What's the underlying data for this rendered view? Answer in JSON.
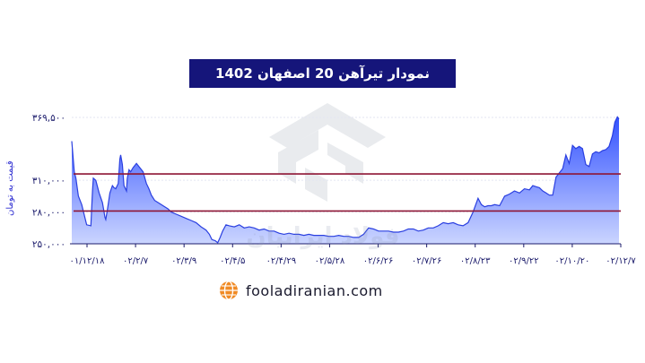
{
  "chart_data": {
    "type": "area",
    "title": "نمودار تیرآهن 20 اصفهان 1402",
    "ylabel": "قیمت به تومان",
    "xlabel": "",
    "ylim": [
      250000,
      372000
    ],
    "yticks": [
      "۳۶۹,۵۰۰",
      "۳۱۰,۰۰۰",
      "۲۸۰,۰۰۰",
      "۲۵۰,۰۰۰"
    ],
    "ytick_values": [
      369500,
      310000,
      280000,
      250000
    ],
    "xticks": [
      "۰۱/۱۲/۱۸",
      "۰۲/۲/۷",
      "۰۲/۳/۹",
      "۰۲/۴/۵",
      "۰۲/۴/۲۹",
      "۰۲/۵/۲۸",
      "۰۲/۶/۲۶",
      "۰۲/۷/۲۶",
      "۰۲/۸/۲۳",
      "۰۲/۹/۲۲",
      "۰۲/۱۰/۲۰",
      "۰۲/۱۲/۷"
    ],
    "reference_lines": [
      316000,
      281000
    ],
    "grid": false,
    "x": [
      0,
      0.3,
      0.5,
      0.8,
      1.2,
      1.8,
      2.3,
      2.5,
      2.6,
      2.9,
      3.3,
      3.7,
      4.0,
      4.1,
      4.3,
      4.6,
      4.9,
      5.1,
      5.3,
      5.6,
      5.8,
      5.9,
      6.1,
      6.3,
      6.6,
      6.7,
      6.9,
      7.1,
      7.4,
      7.8,
      8.2,
      8.6,
      9.0,
      9.3,
      9.6,
      10.0,
      10.6,
      11.0,
      11.6,
      12.0,
      12.6,
      13.2,
      13.8,
      14.4,
      15.0,
      15.6,
      16.2,
      16.6,
      16.9,
      17.3,
      17.6,
      17.9,
      18.2,
      18.6,
      19.0,
      19.6,
      20.2,
      20.8,
      21.4,
      22.0,
      22.6,
      23.2,
      23.8,
      24.4,
      25.0,
      25.6,
      26.2,
      26.8,
      27.4,
      28.0,
      28.6,
      29.2,
      29.8,
      30.4,
      31.0,
      31.6,
      32.2,
      32.8,
      33.4,
      34.0,
      34.6,
      35.2,
      35.8,
      36.4,
      37.0,
      37.6,
      38.2,
      38.8,
      39.4,
      40.0,
      40.6,
      41.2,
      41.8,
      42.4,
      43.0,
      43.6,
      44.2,
      44.8,
      45.4,
      46.0,
      46.6,
      47.2,
      47.8,
      48.4,
      49.0,
      49.4,
      49.8,
      50.2,
      50.6,
      51.0,
      51.6,
      52.2,
      52.8,
      53.4,
      54.0,
      54.6,
      55.2,
      55.6,
      56.0,
      56.4,
      56.8,
      57.2,
      57.6,
      58.0,
      58.4,
      58.8,
      59.2,
      59.6,
      60.0,
      60.4,
      60.8,
      61.2,
      61.6,
      62.0,
      62.4,
      62.8,
      63.2,
      63.6,
      64.0,
      64.4,
      64.8,
      65.2,
      65.5,
      65.8,
      66.0
    ],
    "values": [
      347000,
      318000,
      312000,
      295000,
      287000,
      268000,
      267000,
      300000,
      312000,
      310000,
      298000,
      289000,
      275000,
      273000,
      282000,
      298000,
      305000,
      303000,
      302000,
      307000,
      330000,
      334000,
      325000,
      305000,
      300000,
      312000,
      320000,
      318000,
      322000,
      326000,
      322000,
      318000,
      307000,
      302000,
      296000,
      291000,
      288000,
      286000,
      283000,
      280000,
      278000,
      276000,
      274000,
      272000,
      270000,
      266000,
      263000,
      259000,
      254000,
      253000,
      251000,
      256000,
      262000,
      268000,
      267000,
      266000,
      268000,
      265000,
      266000,
      265000,
      263000,
      264000,
      262000,
      262000,
      260000,
      259000,
      260000,
      259000,
      259000,
      258000,
      259000,
      258000,
      258000,
      258000,
      257000,
      257000,
      258000,
      257000,
      257000,
      256000,
      256000,
      259000,
      265000,
      264000,
      262000,
      262000,
      262000,
      261000,
      261000,
      262000,
      264000,
      264000,
      262000,
      263000,
      265000,
      265000,
      267000,
      270000,
      269000,
      270000,
      268000,
      267000,
      270000,
      280000,
      293000,
      287000,
      285000,
      286000,
      286000,
      287000,
      286000,
      295000,
      297000,
      300000,
      298000,
      302000,
      301000,
      305000,
      304000,
      303000,
      300000,
      298000,
      296000,
      296000,
      313000,
      317000,
      321000,
      334000,
      326000,
      343000,
      340000,
      342000,
      340000,
      325000,
      323000,
      335000,
      337000,
      336000,
      338000,
      339000,
      342000,
      352000,
      365000,
      370000,
      368000
    ]
  },
  "watermark": {
    "text": "فولاد ایرانیان"
  },
  "footer": {
    "site": "fooladiranian.com",
    "icon": "globe-icon"
  },
  "colors": {
    "title_bg": "#15157a",
    "area_top": "#3d5cff",
    "area_bottom": "#c9d3ff",
    "ref_line": "#8e1534",
    "axis_text": "#1b1b6b"
  }
}
